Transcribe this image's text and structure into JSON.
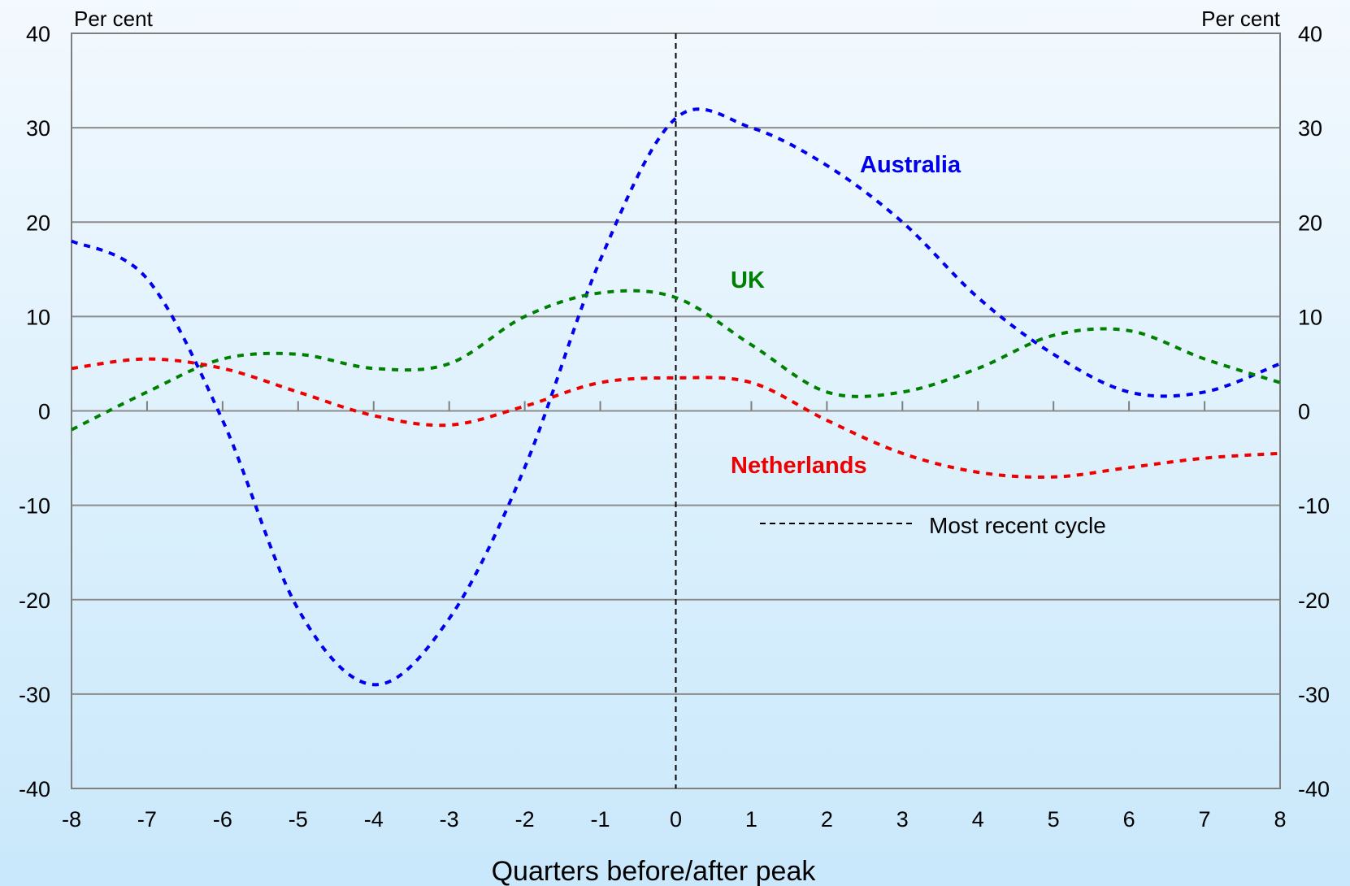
{
  "chart_data": {
    "type": "line",
    "xlabel": "Quarters before/after peak",
    "unit_left": "Per cent",
    "unit_right": "Per cent",
    "xlim": [
      -8,
      8
    ],
    "ylim": [
      -40,
      40
    ],
    "x_ticks": [
      -8,
      -7,
      -6,
      -5,
      -4,
      -3,
      -2,
      -1,
      0,
      1,
      2,
      3,
      4,
      5,
      6,
      7,
      8
    ],
    "y_ticks": [
      40,
      30,
      20,
      10,
      0,
      -10,
      -20,
      -30,
      -40
    ],
    "grid": true,
    "reference_line_x": 0,
    "legend": {
      "label": "Most recent cycle",
      "style": "dashed-black"
    },
    "series": [
      {
        "name": "Australia",
        "color": "#0000ee",
        "x": [
          -8,
          -7,
          -6,
          -5,
          -4,
          -3,
          -2,
          -1,
          0,
          1,
          2,
          3,
          4,
          5,
          6,
          7,
          8
        ],
        "y": [
          18,
          14,
          -1,
          -21,
          -29,
          -22,
          -6,
          16,
          31,
          30,
          26,
          20,
          12,
          6,
          2,
          2,
          5
        ]
      },
      {
        "name": "UK",
        "color": "#008000",
        "x": [
          -8,
          -7,
          -6,
          -5,
          -4,
          -3,
          -2,
          -1,
          0,
          1,
          2,
          3,
          4,
          5,
          6,
          7,
          8
        ],
        "y": [
          -2,
          2,
          5.5,
          6,
          4.5,
          5,
          10,
          12.5,
          12,
          7,
          2,
          2,
          4.5,
          8,
          8.5,
          5.5,
          3
        ]
      },
      {
        "name": "Netherlands",
        "color": "#ee0000",
        "x": [
          -8,
          -7,
          -6,
          -5,
          -4,
          -3,
          -2,
          -1,
          0,
          1,
          2,
          3,
          4,
          5,
          6,
          7,
          8
        ],
        "y": [
          4.5,
          5.5,
          4.5,
          2,
          -0.5,
          -1.5,
          0.5,
          3,
          3.5,
          3,
          -1,
          -4.5,
          -6.5,
          -7,
          -6,
          -5,
          -4.5
        ]
      }
    ]
  }
}
